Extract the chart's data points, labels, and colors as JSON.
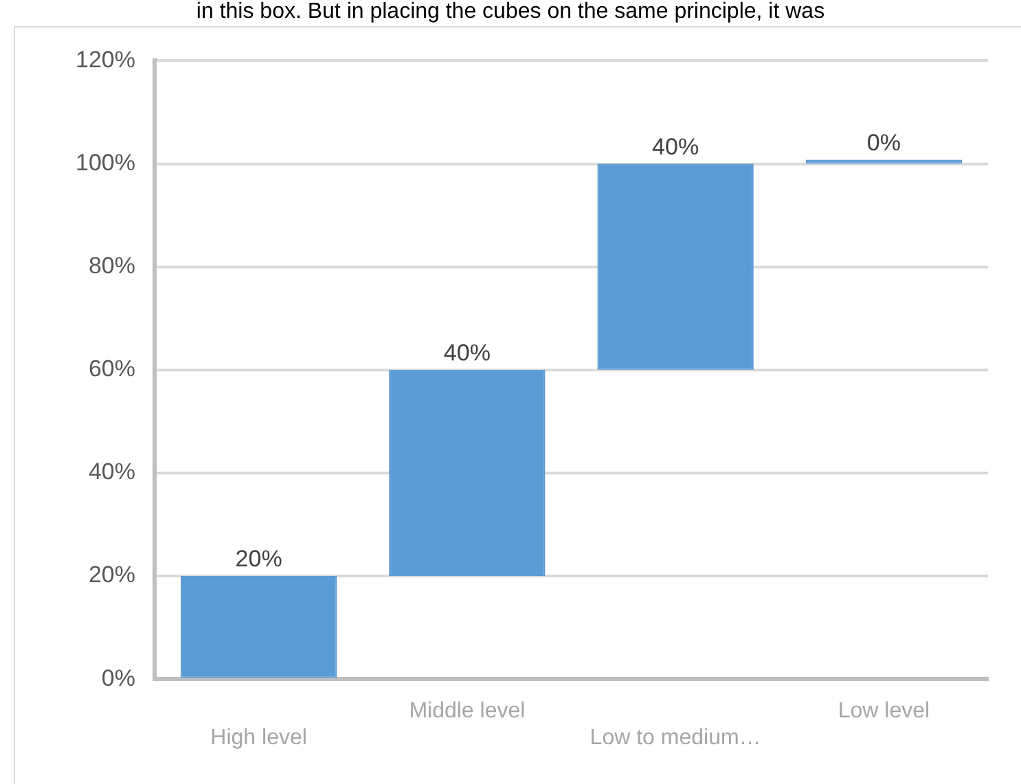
{
  "chart_data": {
    "type": "bar",
    "categories": [
      "High level",
      "Middle level",
      "Low to medium…",
      "Low level"
    ],
    "values": [
      20,
      40,
      40,
      0
    ],
    "base": [
      0,
      20,
      60,
      100
    ],
    "color": "#5b9bd5",
    "value_labels": [
      "20%",
      "40%",
      "40%",
      "0%"
    ],
    "ylim": [
      0,
      120
    ],
    "yticks": [
      {
        "value": 0,
        "label": "0%"
      },
      {
        "value": 20,
        "label": "20%"
      },
      {
        "value": 40,
        "label": "40%"
      },
      {
        "value": 60,
        "label": "60%"
      },
      {
        "value": 80,
        "label": "80%"
      },
      {
        "value": 100,
        "label": "100%"
      },
      {
        "value": 120,
        "label": "120%"
      }
    ],
    "grid": "y",
    "legend": false,
    "annotations": [
      "in this box. But in placing the cubes on the same principle, it was"
    ]
  }
}
